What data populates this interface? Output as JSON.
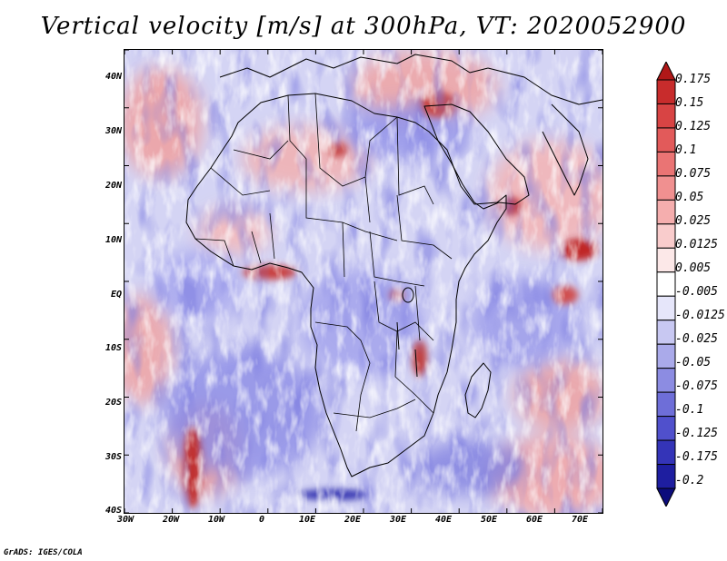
{
  "title": "Vertical velocity [m/s] at 300hPa, VT: 2020052900",
  "map": {
    "region": "Africa",
    "variable": "Vertical velocity",
    "units": "m/s",
    "level": "300hPa",
    "valid_time": "2020052900",
    "lat_labels": [
      "40N",
      "30N",
      "20N",
      "10N",
      "EQ",
      "10S",
      "20S",
      "30S",
      "40S"
    ],
    "lon_labels": [
      "30W",
      "20W",
      "10W",
      "0",
      "10E",
      "20E",
      "30E",
      "40E",
      "50E",
      "60E",
      "70E"
    ]
  },
  "colorbar": {
    "levels": [
      "0.175",
      "0.15",
      "0.125",
      "0.1",
      "0.075",
      "0.05",
      "0.025",
      "0.0125",
      "0.005",
      "-0.005",
      "-0.0125",
      "-0.025",
      "-0.05",
      "-0.075",
      "-0.1",
      "-0.125",
      "-0.175",
      "-0.2"
    ],
    "colors": [
      "#b01818",
      "#c82c2c",
      "#d84444",
      "#e25a5a",
      "#ea7474",
      "#f09090",
      "#f5aeae",
      "#f9cccc",
      "#fce8e8",
      "#ffffff",
      "#e6e6fa",
      "#c8c8f2",
      "#aaaaea",
      "#8c8ce2",
      "#6e6ed8",
      "#5050cc",
      "#3434b8",
      "#1e1ea0",
      "#0c0c7c"
    ]
  },
  "credit": "GrADS: IGES/COLA"
}
